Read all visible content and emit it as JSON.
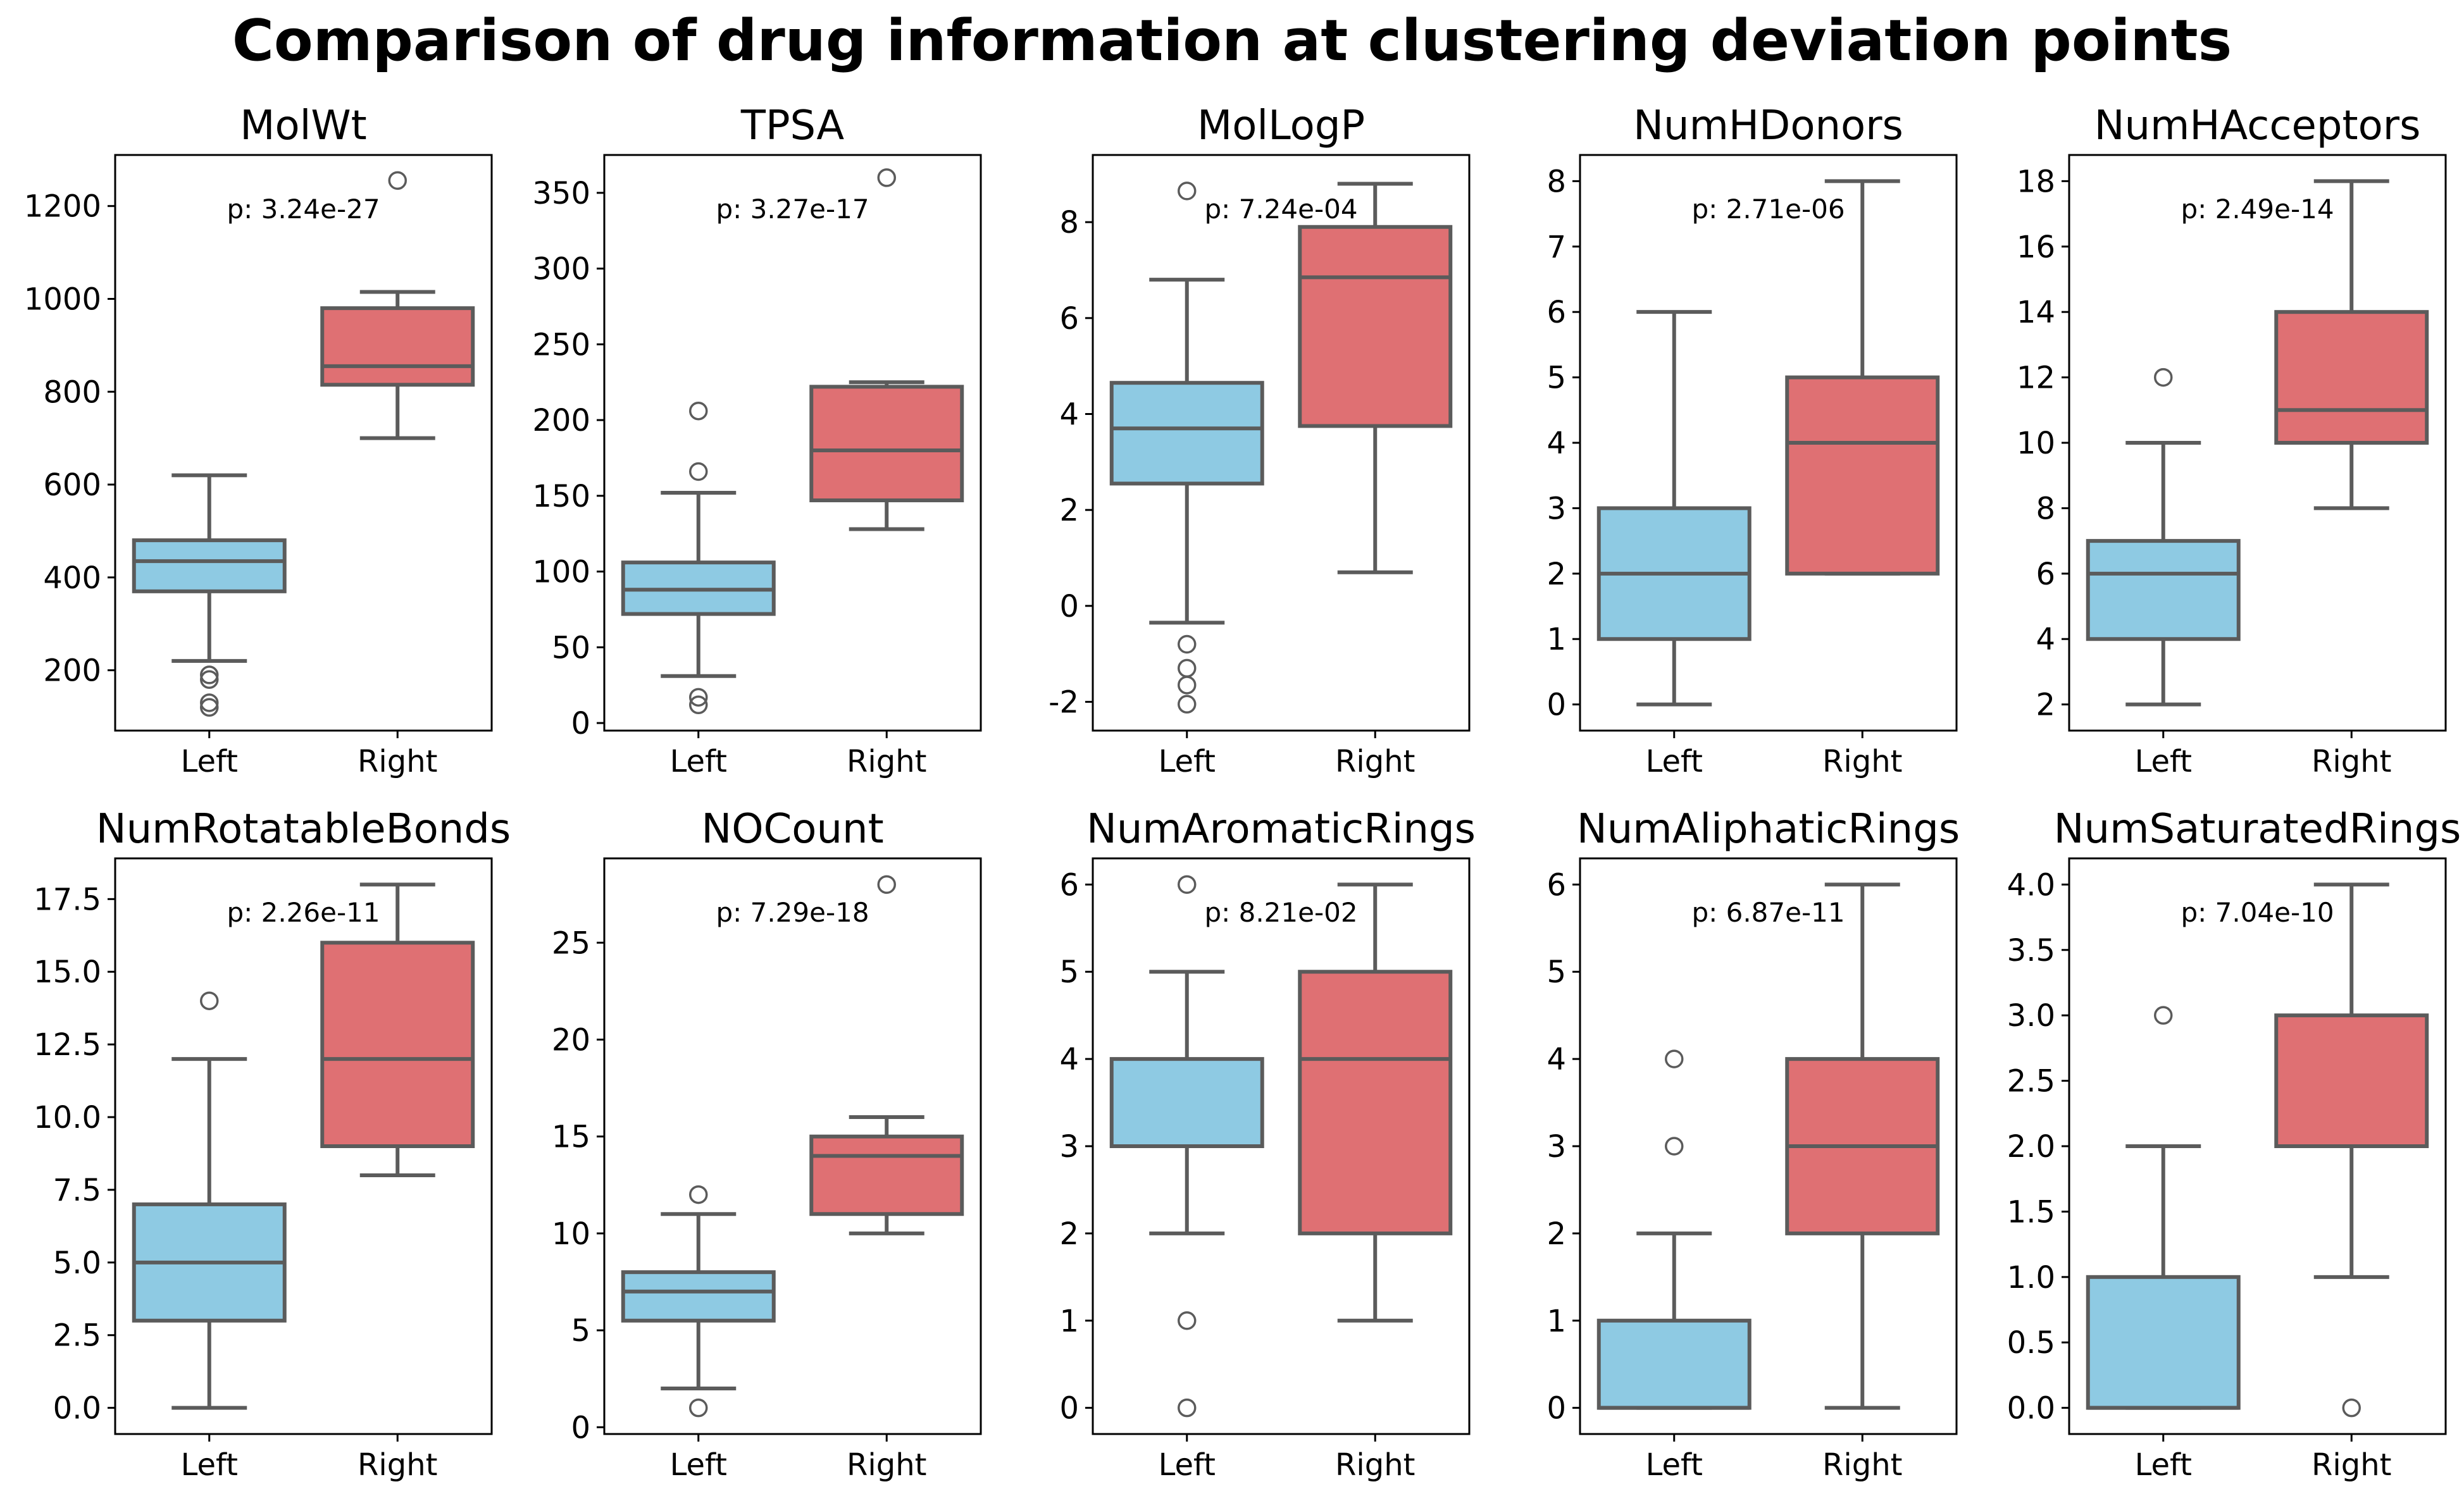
{
  "title": "Comparison of drug information at clustering deviation points",
  "colors": {
    "left": "#8ecae3",
    "right": "#df7073",
    "line": "#5b5b5b"
  },
  "chart_data": [
    {
      "type": "box",
      "title": "MolWt",
      "categories": [
        "Left",
        "Right"
      ],
      "ylim": [
        70,
        1310
      ],
      "yticks": [
        200,
        400,
        600,
        800,
        1000,
        1200
      ],
      "tick_decimals": 0,
      "pvalue": "p: 3.24e-27",
      "boxes": [
        {
          "name": "Left",
          "whislo": 220,
          "q1": 370,
          "med": 435,
          "q3": 480,
          "whishi": 620,
          "fliers": [
            180,
            190,
            120,
            130
          ]
        },
        {
          "name": "Right",
          "whislo": 700,
          "q1": 815,
          "med": 855,
          "q3": 980,
          "whishi": 1015,
          "fliers": [
            1255
          ]
        }
      ]
    },
    {
      "type": "box",
      "title": "TPSA",
      "categories": [
        "Left",
        "Right"
      ],
      "ylim": [
        -5,
        375
      ],
      "yticks": [
        0,
        50,
        100,
        150,
        200,
        250,
        300,
        350
      ],
      "tick_decimals": 0,
      "pvalue": "p: 3.27e-17",
      "boxes": [
        {
          "name": "Left",
          "whislo": 31,
          "q1": 72,
          "med": 88,
          "q3": 106,
          "whishi": 152,
          "fliers": [
            206,
            166,
            12,
            17
          ]
        },
        {
          "name": "Right",
          "whislo": 128,
          "q1": 147,
          "med": 180,
          "q3": 222,
          "whishi": 225,
          "fliers": [
            360
          ]
        }
      ]
    },
    {
      "type": "box",
      "title": "MolLogP",
      "categories": [
        "Left",
        "Right"
      ],
      "ylim": [
        -2.6,
        9.4
      ],
      "yticks": [
        -2,
        0,
        2,
        4,
        6,
        8
      ],
      "tick_decimals": 0,
      "pvalue": "p: 7.24e-04",
      "boxes": [
        {
          "name": "Left",
          "whislo": -0.35,
          "q1": 2.55,
          "med": 3.7,
          "q3": 4.65,
          "whishi": 6.8,
          "fliers": [
            8.65,
            -0.8,
            -1.3,
            -1.65,
            -2.05
          ]
        },
        {
          "name": "Right",
          "whislo": 0.7,
          "q1": 3.75,
          "med": 6.85,
          "q3": 7.9,
          "whishi": 8.8,
          "fliers": []
        }
      ]
    },
    {
      "type": "box",
      "title": "NumHDonors",
      "categories": [
        "Left",
        "Right"
      ],
      "ylim": [
        -0.4,
        8.4
      ],
      "yticks": [
        0,
        1,
        2,
        3,
        4,
        5,
        6,
        7,
        8
      ],
      "tick_decimals": 0,
      "pvalue": "p: 2.71e-06",
      "boxes": [
        {
          "name": "Left",
          "whislo": 0,
          "q1": 1,
          "med": 2,
          "q3": 3,
          "whishi": 6,
          "fliers": []
        },
        {
          "name": "Right",
          "whislo": 2,
          "q1": 2,
          "med": 4,
          "q3": 5,
          "whishi": 8,
          "fliers": []
        }
      ]
    },
    {
      "type": "box",
      "title": "NumHAcceptors",
      "categories": [
        "Left",
        "Right"
      ],
      "ylim": [
        1.2,
        18.8
      ],
      "yticks": [
        2,
        4,
        6,
        8,
        10,
        12,
        14,
        16,
        18
      ],
      "tick_decimals": 0,
      "pvalue": "p: 2.49e-14",
      "boxes": [
        {
          "name": "Left",
          "whislo": 2,
          "q1": 4,
          "med": 6,
          "q3": 7,
          "whishi": 10,
          "fliers": [
            12
          ]
        },
        {
          "name": "Right",
          "whislo": 8,
          "q1": 10,
          "med": 11,
          "q3": 14,
          "whishi": 18,
          "fliers": []
        }
      ]
    },
    {
      "type": "box",
      "title": "NumRotatableBonds",
      "categories": [
        "Left",
        "Right"
      ],
      "ylim": [
        -0.9,
        18.9
      ],
      "yticks": [
        0,
        2.5,
        5,
        7.5,
        10,
        12.5,
        15,
        17.5
      ],
      "tick_decimals": 1,
      "pvalue": "p: 2.26e-11",
      "boxes": [
        {
          "name": "Left",
          "whislo": 0,
          "q1": 3,
          "med": 5,
          "q3": 7,
          "whishi": 12,
          "fliers": [
            14
          ]
        },
        {
          "name": "Right",
          "whislo": 8,
          "q1": 9,
          "med": 12,
          "q3": 16,
          "whishi": 18,
          "fliers": []
        }
      ]
    },
    {
      "type": "box",
      "title": "NOCount",
      "categories": [
        "Left",
        "Right"
      ],
      "ylim": [
        -0.35,
        29.35
      ],
      "yticks": [
        0,
        5,
        10,
        15,
        20,
        25
      ],
      "tick_decimals": 0,
      "pvalue": "p: 7.29e-18",
      "boxes": [
        {
          "name": "Left",
          "whislo": 2,
          "q1": 5.5,
          "med": 7,
          "q3": 8,
          "whishi": 11,
          "fliers": [
            12,
            1
          ]
        },
        {
          "name": "Right",
          "whislo": 10,
          "q1": 11,
          "med": 14,
          "q3": 15,
          "whishi": 16,
          "fliers": [
            28
          ]
        }
      ]
    },
    {
      "type": "box",
      "title": "NumAromaticRings",
      "categories": [
        "Left",
        "Right"
      ],
      "ylim": [
        -0.3,
        6.3
      ],
      "yticks": [
        0,
        1,
        2,
        3,
        4,
        5,
        6
      ],
      "tick_decimals": 0,
      "pvalue": "p: 8.21e-02",
      "boxes": [
        {
          "name": "Left",
          "whislo": 2,
          "q1": 3,
          "med": 3,
          "q3": 4,
          "whishi": 5,
          "fliers": [
            6,
            1,
            0
          ]
        },
        {
          "name": "Right",
          "whislo": 1,
          "q1": 2,
          "med": 4,
          "q3": 5,
          "whishi": 6,
          "fliers": []
        }
      ]
    },
    {
      "type": "box",
      "title": "NumAliphaticRings",
      "categories": [
        "Left",
        "Right"
      ],
      "ylim": [
        -0.3,
        6.3
      ],
      "yticks": [
        0,
        1,
        2,
        3,
        4,
        5,
        6
      ],
      "tick_decimals": 0,
      "pvalue": "p: 6.87e-11",
      "boxes": [
        {
          "name": "Left",
          "whislo": 0,
          "q1": 0,
          "med": 0,
          "q3": 1,
          "whishi": 2,
          "fliers": [
            4,
            3
          ]
        },
        {
          "name": "Right",
          "whislo": 0,
          "q1": 2,
          "med": 3,
          "q3": 4,
          "whishi": 6,
          "fliers": []
        }
      ]
    },
    {
      "type": "box",
      "title": "NumSaturatedRings",
      "categories": [
        "Left",
        "Right"
      ],
      "ylim": [
        -0.2,
        4.2
      ],
      "yticks": [
        0,
        0.5,
        1,
        1.5,
        2,
        2.5,
        3,
        3.5,
        4
      ],
      "tick_decimals": 1,
      "pvalue": "p: 7.04e-10",
      "boxes": [
        {
          "name": "Left",
          "whislo": 0,
          "q1": 0,
          "med": 0,
          "q3": 1,
          "whishi": 2,
          "fliers": [
            3
          ]
        },
        {
          "name": "Right",
          "whislo": 1,
          "q1": 2,
          "med": 2,
          "q3": 3,
          "whishi": 4,
          "fliers": [
            0
          ]
        }
      ]
    }
  ]
}
